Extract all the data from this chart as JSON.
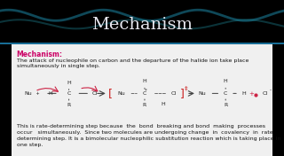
{
  "title": "Mechanism",
  "title_color": "#e8e8f0",
  "title_fontsize": 14,
  "bg_gradient_top": "#1a6080",
  "bg_gradient_bottom": "#0d3d55",
  "content_bg": "#f5f5f5",
  "heading_text": "Mechanism:",
  "heading_color": "#cc0066",
  "body_text1": "The attack of nucleophile on carbon and the departure of the halide ion take place\nsimultaneously in single step.",
  "body_text2": "This is rate-determining step because  the  bond  breaking and bond  making  processes\noccur   simultaneously.  Since two molecules are undergoing change  in  covalency  in  rate\ndetermining step. It is a bimolecular nucleophilic substitution reaction which is taking place in\none step.",
  "text_color": "#111111",
  "text_fontsize": 4.5,
  "arrow_color": "#444444",
  "bracket_color": "#cc2222",
  "nucleophile_color": "#222222",
  "curved_arrow_color": "#cc2244"
}
